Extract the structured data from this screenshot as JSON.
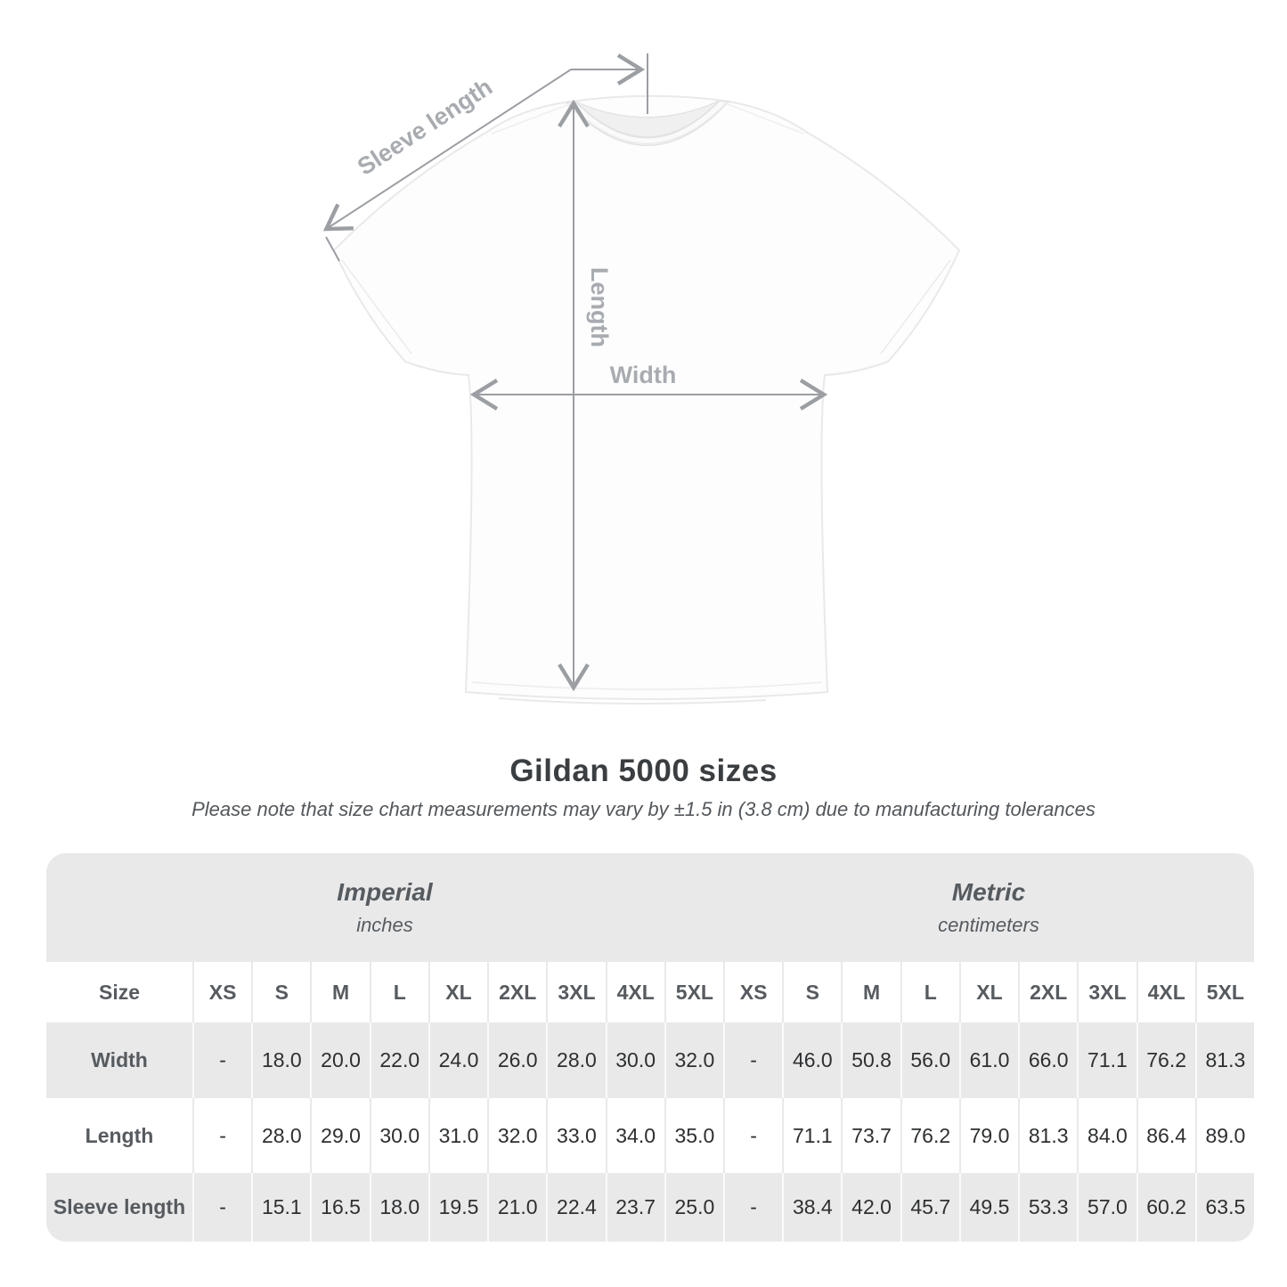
{
  "diagram": {
    "labels": {
      "sleeve_length": "Sleeve length",
      "length": "Length",
      "width": "Width"
    }
  },
  "title": "Gildan 5000 sizes",
  "note": "Please note that size chart measurements may vary by ±1.5 in (3.8 cm) due to manufacturing tolerances",
  "table": {
    "size_header": "Size",
    "groups": [
      {
        "name": "Imperial",
        "unit": "inches"
      },
      {
        "name": "Metric",
        "unit": "centimeters"
      }
    ],
    "sizes": [
      "XS",
      "S",
      "M",
      "L",
      "XL",
      "2XL",
      "3XL",
      "4XL",
      "5XL"
    ],
    "rows": [
      {
        "label": "Width",
        "imperial": [
          "-",
          "18.0",
          "20.0",
          "22.0",
          "24.0",
          "26.0",
          "28.0",
          "30.0",
          "32.0"
        ],
        "metric": [
          "-",
          "46.0",
          "50.8",
          "56.0",
          "61.0",
          "66.0",
          "71.1",
          "76.2",
          "81.3"
        ]
      },
      {
        "label": "Length",
        "imperial": [
          "-",
          "28.0",
          "29.0",
          "30.0",
          "31.0",
          "32.0",
          "33.0",
          "34.0",
          "35.0"
        ],
        "metric": [
          "-",
          "71.1",
          "73.7",
          "76.2",
          "79.0",
          "81.3",
          "84.0",
          "86.4",
          "89.0"
        ]
      },
      {
        "label": "Sleeve length",
        "imperial": [
          "-",
          "15.1",
          "16.5",
          "18.0",
          "19.5",
          "21.0",
          "22.4",
          "23.7",
          "25.0"
        ],
        "metric": [
          "-",
          "38.4",
          "42.0",
          "45.7",
          "49.5",
          "53.3",
          "57.0",
          "60.2",
          "63.5"
        ]
      }
    ]
  }
}
